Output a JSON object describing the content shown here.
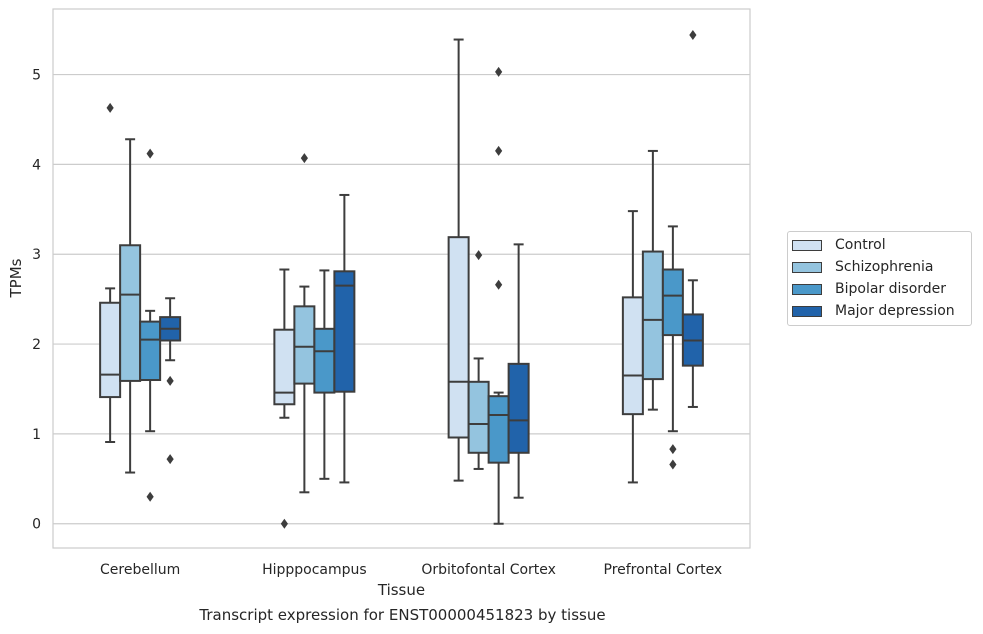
{
  "chart_data": {
    "type": "box",
    "title": "Transcript expression for ENST00000451823 by tissue",
    "xlabel": "Tissue",
    "ylabel": "TPMs",
    "ylim": [
      -0.27,
      5.73
    ],
    "yticks": [
      0,
      1,
      2,
      3,
      4,
      5
    ],
    "grid": true,
    "legend_position": "right",
    "categories": [
      "Cerebellum",
      "Hipppocampus",
      "Orbitofontal Cortex",
      "Prefrontal Cortex"
    ],
    "series": [
      {
        "name": "Control",
        "color": "#d0e1f2",
        "boxes": [
          {
            "whisker_low": 0.91,
            "q1": 1.41,
            "median": 1.66,
            "q3": 2.46,
            "whisker_high": 2.62,
            "outliers": [
              4.63
            ]
          },
          {
            "whisker_low": 1.18,
            "q1": 1.33,
            "median": 1.46,
            "q3": 2.16,
            "whisker_high": 2.83,
            "outliers": [
              0.0
            ]
          },
          {
            "whisker_low": 0.48,
            "q1": 0.96,
            "median": 1.58,
            "q3": 3.19,
            "whisker_high": 5.39,
            "outliers": []
          },
          {
            "whisker_low": 0.46,
            "q1": 1.22,
            "median": 1.65,
            "q3": 2.52,
            "whisker_high": 3.48,
            "outliers": []
          }
        ]
      },
      {
        "name": "Schizophrenia",
        "color": "#94c4df",
        "boxes": [
          {
            "whisker_low": 0.57,
            "q1": 1.59,
            "median": 2.55,
            "q3": 3.1,
            "whisker_high": 4.28,
            "outliers": []
          },
          {
            "whisker_low": 0.35,
            "q1": 1.56,
            "median": 1.97,
            "q3": 2.42,
            "whisker_high": 2.64,
            "outliers": [
              4.07
            ]
          },
          {
            "whisker_low": 0.61,
            "q1": 0.79,
            "median": 1.11,
            "q3": 1.58,
            "whisker_high": 1.84,
            "outliers": [
              2.99
            ]
          },
          {
            "whisker_low": 1.27,
            "q1": 1.61,
            "median": 2.27,
            "q3": 3.03,
            "whisker_high": 4.15,
            "outliers": []
          }
        ]
      },
      {
        "name": "Bipolar disorder",
        "color": "#4a98c9",
        "boxes": [
          {
            "whisker_low": 1.03,
            "q1": 1.6,
            "median": 2.05,
            "q3": 2.25,
            "whisker_high": 2.37,
            "outliers": [
              4.12,
              0.3
            ]
          },
          {
            "whisker_low": 0.5,
            "q1": 1.46,
            "median": 1.92,
            "q3": 2.17,
            "whisker_high": 2.82,
            "outliers": []
          },
          {
            "whisker_low": 0.0,
            "q1": 0.68,
            "median": 1.21,
            "q3": 1.42,
            "whisker_high": 1.46,
            "outliers": [
              5.03,
              4.15,
              2.66
            ]
          },
          {
            "whisker_low": 1.03,
            "q1": 2.1,
            "median": 2.54,
            "q3": 2.83,
            "whisker_high": 3.31,
            "outliers": [
              0.83,
              0.66
            ]
          }
        ]
      },
      {
        "name": "Major depression",
        "color": "#2163aa",
        "boxes": [
          {
            "whisker_low": 1.82,
            "q1": 2.04,
            "median": 2.17,
            "q3": 2.3,
            "whisker_high": 2.51,
            "outliers": [
              1.59,
              0.72
            ]
          },
          {
            "whisker_low": 0.46,
            "q1": 1.47,
            "median": 2.65,
            "q3": 2.81,
            "whisker_high": 3.66,
            "outliers": []
          },
          {
            "whisker_low": 0.29,
            "q1": 0.79,
            "median": 1.15,
            "q3": 1.78,
            "whisker_high": 3.11,
            "outliers": []
          },
          {
            "whisker_low": 1.3,
            "q1": 1.76,
            "median": 2.04,
            "q3": 2.33,
            "whisker_high": 2.71,
            "outliers": [
              5.44
            ]
          }
        ]
      }
    ]
  }
}
